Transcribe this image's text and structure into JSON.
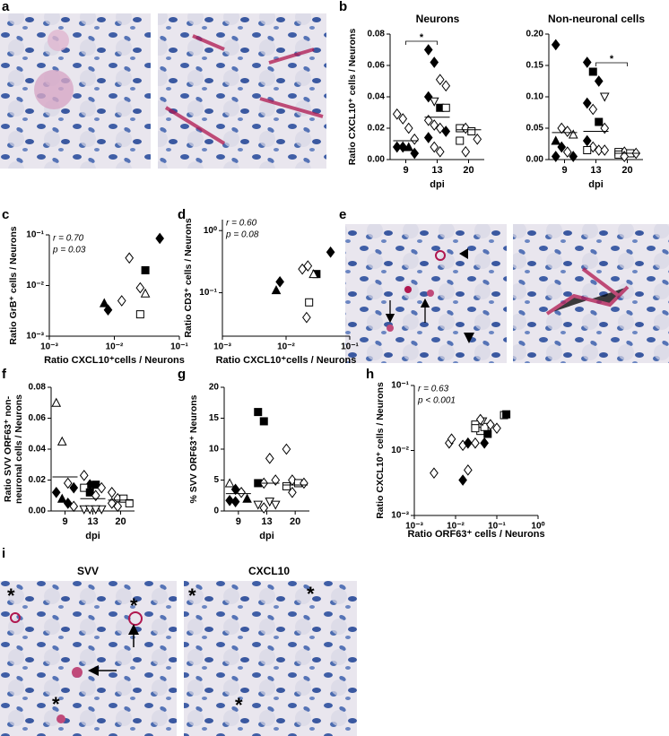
{
  "panel_labels": {
    "a": "a",
    "b": "b",
    "c": "c",
    "d": "d",
    "e": "e",
    "f": "f",
    "g": "g",
    "h": "h",
    "i": "i"
  },
  "panel_i": {
    "left_title": "SVV",
    "right_title": "CXCL10",
    "asterisk": "*"
  },
  "chart_data": [
    {
      "type": "dotplot",
      "title": "Neurons",
      "y_label": [
        "Ratio  CXCL10⁺ cells / Neurons"
      ],
      "x_label": "dpi",
      "ylim": [
        0,
        0.08
      ],
      "yticks": [
        {
          "value": 0,
          "label": "0.00"
        },
        0.02,
        0.04,
        0.06,
        0.08
      ],
      "groups": [
        {
          "category": "9",
          "values": [
            0.029,
            0.026,
            0.02,
            0.013,
            0.008,
            0.008,
            0.008,
            0.004
          ],
          "markers": [
            "open-diamond",
            "open-diamond",
            "open-diamond",
            "open-diamond",
            "diamond",
            "diamond",
            "triangle",
            "diamond"
          ],
          "mean": 0.012
        },
        {
          "category": "13",
          "values": [
            0.07,
            0.062,
            0.051,
            0.047,
            0.04,
            0.037,
            0.033,
            0.033,
            0.025,
            0.022,
            0.02,
            0.018,
            0.014,
            0.008,
            0.005
          ],
          "markers": [
            "diamond",
            "diamond",
            "open-diamond",
            "open-diamond",
            "diamond",
            "open-triangle-down",
            "square",
            "open-square",
            "open-diamond",
            "open-diamond",
            "open-diamond",
            "diamond",
            "diamond",
            "open-diamond",
            "open-diamond"
          ],
          "mean": 0.027
        },
        {
          "category": "20",
          "values": [
            0.02,
            0.02,
            0.018,
            0.013,
            0.012,
            0.005
          ],
          "markers": [
            "open-square",
            "open-diamond",
            "open-square",
            "open-diamond",
            "open-square",
            "open-diamond"
          ],
          "mean": 0.019
        }
      ],
      "significance": [
        {
          "between": [
            0,
            1
          ],
          "label": "*"
        }
      ]
    },
    {
      "type": "dotplot",
      "title": "Non-neuronal cells",
      "x_label": "dpi",
      "ylim": [
        0,
        0.2
      ],
      "yticks": [
        {
          "value": 0,
          "label": "0.00"
        },
        0.05,
        {
          "value": 0.1,
          "label": "0.10"
        },
        0.15,
        {
          "value": 0.2,
          "label": "0.20"
        }
      ],
      "groups": [
        {
          "category": "9",
          "values": [
            0.183,
            0.05,
            0.045,
            0.04,
            0.03,
            0.02,
            0.012,
            0.005,
            0.005
          ],
          "markers": [
            "diamond",
            "open-diamond",
            "open-diamond",
            "open-triangle",
            "triangle",
            "diamond",
            "open-diamond",
            "diamond",
            "diamond"
          ],
          "mean": 0.043
        },
        {
          "category": "13",
          "values": [
            0.155,
            0.14,
            0.125,
            0.1,
            0.09,
            0.08,
            0.06,
            0.05,
            0.03,
            0.02,
            0.015,
            0.015,
            0.015
          ],
          "markers": [
            "diamond",
            "square",
            "diamond",
            "open-triangle-down",
            "diamond",
            "open-diamond",
            "square",
            "open-diamond",
            "diamond",
            "open-diamond",
            "open-diamond",
            "open-diamond",
            "open-square"
          ],
          "mean": 0.045
        },
        {
          "category": "20",
          "values": [
            0.012,
            0.012,
            0.01,
            0.01,
            0.008,
            0.005
          ],
          "markers": [
            "open-square",
            "open-diamond",
            "open-square",
            "open-diamond",
            "open-square",
            "open-diamond"
          ],
          "mean": 0.01
        }
      ],
      "significance": [
        {
          "between": [
            1,
            2
          ],
          "label": "*"
        }
      ]
    },
    {
      "type": "scatter",
      "y_label": [
        "Ratio GrB⁺ cells / Neurons"
      ],
      "x_label": "Ratio CXCL10⁺cells / Neurons",
      "log": true,
      "annotations": [
        "r = 0.70",
        "p = 0.03"
      ],
      "xlim": [
        0.001,
        0.1
      ],
      "xticks": [
        {
          "value": 0.001,
          "label": "10⁻³"
        },
        {
          "value": 0.01,
          "label": "10⁻²"
        },
        {
          "value": 0.1,
          "label": "10⁻¹"
        }
      ],
      "ylim": [
        0.001,
        0.1
      ],
      "yticks": [
        {
          "value": 0.001,
          "label": "10⁻³"
        },
        {
          "value": 0.01,
          "label": "10⁻²"
        },
        {
          "value": 0.1,
          "label": "10⁻¹"
        }
      ],
      "x": [
        0.05,
        0.017,
        0.03,
        0.025,
        0.03,
        0.013,
        0.007,
        0.008,
        0.025
      ],
      "y": [
        0.085,
        0.035,
        0.02,
        0.009,
        0.007,
        0.005,
        0.0045,
        0.0033,
        0.0027
      ],
      "markers": [
        "diamond",
        "open-diamond",
        "square",
        "open-diamond",
        "open-triangle",
        "open-diamond",
        "triangle",
        "diamond",
        "open-square"
      ]
    },
    {
      "type": "scatter",
      "y_label": [
        "Ratio  CD3⁺ cells /  Neurons"
      ],
      "x_label": "Ratio CXCL10⁺cells / Neurons",
      "log": true,
      "annotations": [
        "r = 0.60",
        "p = 0.08"
      ],
      "xlim": [
        0.001,
        0.1
      ],
      "xticks": [
        {
          "value": 0.001,
          "label": "10⁻³"
        },
        {
          "value": 0.01,
          "label": "10⁻²"
        },
        {
          "value": 0.1,
          "label": "10⁻¹"
        }
      ],
      "ylim": [
        0.02,
        1.5
      ],
      "yticks": [
        {
          "value": 0.1,
          "label": "10⁻¹"
        },
        {
          "value": 1,
          "label": "10⁰"
        }
      ],
      "x": [
        0.05,
        0.022,
        0.018,
        0.03,
        0.027,
        0.008,
        0.007,
        0.023,
        0.021
      ],
      "y": [
        0.45,
        0.27,
        0.24,
        0.2,
        0.2,
        0.15,
        0.11,
        0.07,
        0.04
      ],
      "markers": [
        "diamond",
        "open-diamond",
        "open-diamond",
        "square",
        "open-triangle",
        "diamond",
        "triangle",
        "open-square",
        "open-diamond"
      ]
    },
    {
      "type": "dotplot",
      "y_label": [
        "Ratio SVV ORF63⁺ non-",
        "neuronal cells / Neurons"
      ],
      "x_label": "dpi",
      "ylim": [
        0,
        0.08
      ],
      "yticks": [
        {
          "value": 0,
          "label": "0.00"
        },
        0.02,
        0.04,
        0.06,
        0.08
      ],
      "groups": [
        {
          "category": "9",
          "values": [
            0.07,
            0.045,
            0.018,
            0.015,
            0.012,
            0.008,
            0.005,
            0.003
          ],
          "markers": [
            "open-triangle",
            "open-triangle",
            "open-diamond",
            "diamond",
            "diamond",
            "triangle",
            "diamond",
            "open-diamond"
          ],
          "mean": 0.022
        },
        {
          "category": "13",
          "values": [
            0.023,
            0.017,
            0.017,
            0.015,
            0.015,
            0.012,
            0.01,
            0.001,
            0.001,
            0.001,
            0.001
          ],
          "markers": [
            "open-diamond",
            "diamond",
            "square",
            "open-diamond",
            "open-square",
            "square",
            "open-diamond",
            "open-triangle-down",
            "open-triangle-down",
            "open-triangle-down",
            "open-triangle-down"
          ],
          "mean": 0.008
        },
        {
          "category": "20",
          "values": [
            0.012,
            0.008,
            0.008,
            0.005,
            0.005,
            0.003
          ],
          "markers": [
            "open-diamond",
            "open-diamond",
            "open-square",
            "open-square",
            "open-diamond",
            "open-diamond"
          ],
          "mean": 0.007
        }
      ]
    },
    {
      "type": "dotplot",
      "y_label": [
        "% SVV ORF63⁺ Neurons"
      ],
      "x_label": "dpi",
      "ylim": [
        0,
        20
      ],
      "yticks": [
        0,
        5,
        10,
        15,
        20
      ],
      "groups": [
        {
          "category": "9",
          "values": [
            4.5,
            3.5,
            3,
            2,
            1.7,
            1.5
          ],
          "markers": [
            "open-triangle",
            "diamond",
            "open-diamond",
            "triangle",
            "diamond",
            "diamond"
          ],
          "mean": 2.8
        },
        {
          "category": "13",
          "values": [
            16,
            14.5,
            8.5,
            5,
            4.5,
            4.5,
            1.5,
            1,
            1,
            0.5
          ],
          "markers": [
            "square",
            "square",
            "open-diamond",
            "open-diamond",
            "square",
            "open-diamond",
            "open-triangle-down",
            "open-triangle-down",
            "open-triangle-down",
            "open-diamond"
          ],
          "mean": 4.5
        },
        {
          "category": "20",
          "values": [
            10,
            5,
            4.5,
            4.5,
            4,
            3
          ],
          "markers": [
            "open-diamond",
            "open-diamond",
            "open-square",
            "open-diamond",
            "open-square",
            "open-diamond"
          ],
          "mean": 4.2
        }
      ]
    },
    {
      "type": "scatter",
      "y_label": [
        "Ratio  CXCL10⁺ cells / Neurons"
      ],
      "x_label": "Ratio ORF63⁺ cells /  Neurons",
      "log": true,
      "annotations": [
        "r = 0.63",
        "p < 0.001"
      ],
      "xlim": [
        0.001,
        1
      ],
      "xticks": [
        {
          "value": 0.001,
          "label": "10⁻³"
        },
        {
          "value": 0.01,
          "label": "10⁻²"
        },
        {
          "value": 0.1,
          "label": "10⁻¹"
        },
        {
          "value": 1,
          "label": "10⁰"
        }
      ],
      "ylim": [
        0.001,
        0.1
      ],
      "yticks": [
        {
          "value": 0.001,
          "label": "10⁻³"
        },
        {
          "value": 0.01,
          "label": "10⁻²"
        },
        {
          "value": 0.1,
          "label": "10⁻¹"
        }
      ],
      "x": [
        0.003,
        0.007,
        0.008,
        0.02,
        0.015,
        0.015,
        0.02,
        0.03,
        0.06,
        0.05,
        0.04,
        0.05,
        0.03,
        0.03,
        0.045,
        0.07,
        0.1,
        0.04,
        0.15,
        0.17
      ],
      "y": [
        0.0045,
        0.013,
        0.015,
        0.005,
        0.012,
        0.0035,
        0.013,
        0.013,
        0.018,
        0.013,
        0.02,
        0.023,
        0.025,
        0.022,
        0.028,
        0.025,
        0.022,
        0.03,
        0.035,
        0.036
      ],
      "markers": [
        "open-diamond",
        "open-diamond",
        "open-diamond",
        "open-diamond",
        "open-diamond",
        "diamond",
        "diamond",
        "open-diamond",
        "square",
        "diamond",
        "open-square",
        "open-square",
        "open-square",
        "open-square",
        "open-triangle-down",
        "open-diamond",
        "open-diamond",
        "open-diamond",
        "open-square",
        "square"
      ]
    }
  ]
}
